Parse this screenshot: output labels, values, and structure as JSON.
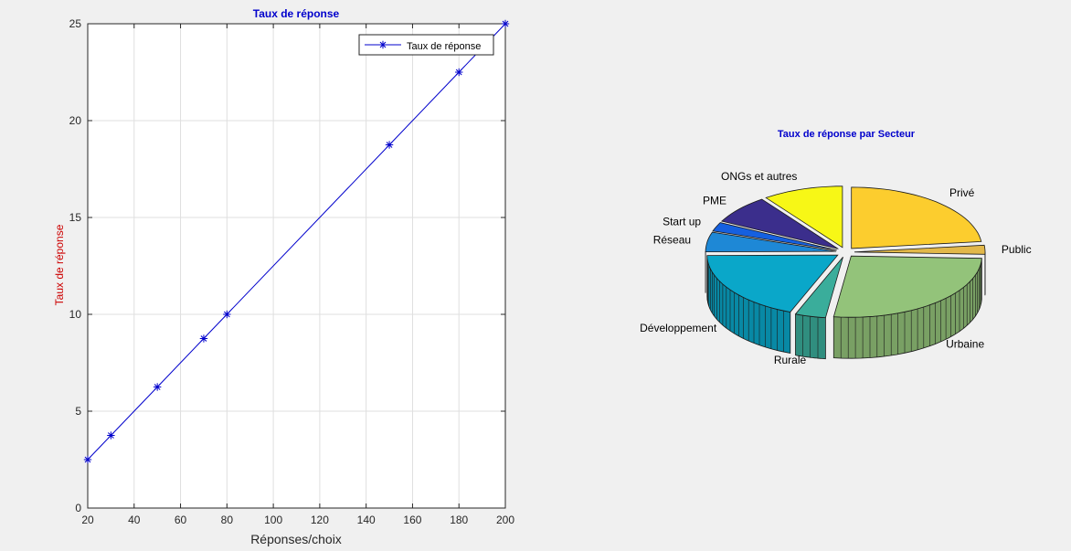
{
  "chart_data": [
    {
      "type": "line",
      "title": "Taux de réponse",
      "xlabel": "Réponses/choix",
      "ylabel": "Taux de réponse",
      "xlim": [
        20,
        200
      ],
      "ylim": [
        0,
        25
      ],
      "xticks": [
        20,
        40,
        60,
        80,
        100,
        120,
        140,
        160,
        180,
        200
      ],
      "yticks": [
        0,
        5,
        10,
        15,
        20,
        25
      ],
      "grid": true,
      "legend": "top-right",
      "series": [
        {
          "name": "Taux de réponse",
          "color": "#0000cc",
          "marker": "asterisk",
          "x": [
            20,
            30,
            50,
            70,
            80,
            150,
            180,
            200
          ],
          "y": [
            2.5,
            3.75,
            6.25,
            8.75,
            10,
            18.75,
            22.5,
            25
          ]
        }
      ]
    },
    {
      "type": "pie",
      "style": "3d-exploded",
      "title": "Taux de réponse par Secteur",
      "slices": [
        {
          "label": "Privé",
          "value": 24.5,
          "color": "#fccd2e"
        },
        {
          "label": "Public",
          "value": 2.5,
          "color": "#e2b84a"
        },
        {
          "label": "Urbaine",
          "value": 28.0,
          "color": "#93c37a"
        },
        {
          "label": "Rurale",
          "value": 4.0,
          "color": "#3aad9b"
        },
        {
          "label": "Développement",
          "value": 20.0,
          "color": "#0aa7c9"
        },
        {
          "label": "Réseau",
          "value": 5.5,
          "color": "#1e88d6"
        },
        {
          "label": "Start up",
          "value": 2.5,
          "color": "#1560e0"
        },
        {
          "label": "PME",
          "value": 8.0,
          "color": "#3b2e8c"
        },
        {
          "label": "ONGs et autres",
          "value": 10.5,
          "color": "#f7f716"
        }
      ]
    }
  ]
}
